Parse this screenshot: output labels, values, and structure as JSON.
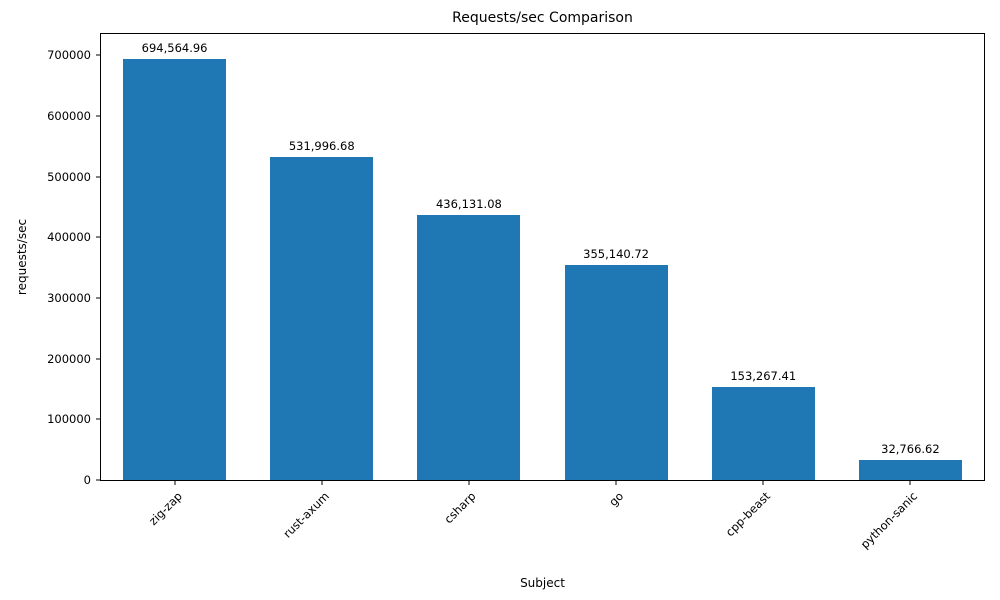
{
  "chart_data": {
    "type": "bar",
    "title": "Requests/sec Comparison",
    "xlabel": "Subject",
    "ylabel": "requests/sec",
    "categories": [
      "zig-zap",
      "rust-axum",
      "csharp",
      "go",
      "cpp-beast",
      "python-sanic"
    ],
    "values": [
      694564.96,
      531996.68,
      436131.08,
      355140.72,
      153267.41,
      32766.62
    ],
    "value_labels": [
      "694,564.96",
      "531,996.68",
      "436,131.08",
      "355,140.72",
      "153,267.41",
      "32,766.62"
    ],
    "ytick_labels": [
      "0",
      "100000",
      "200000",
      "300000",
      "400000",
      "500000",
      "600000",
      "700000"
    ],
    "yticks": [
      0,
      100000,
      200000,
      300000,
      400000,
      500000,
      600000,
      700000
    ],
    "ylim": [
      0,
      735000
    ],
    "bar_color": "#1f77b4",
    "bar_width_fraction": 0.7,
    "grid": false,
    "legend": "none"
  }
}
